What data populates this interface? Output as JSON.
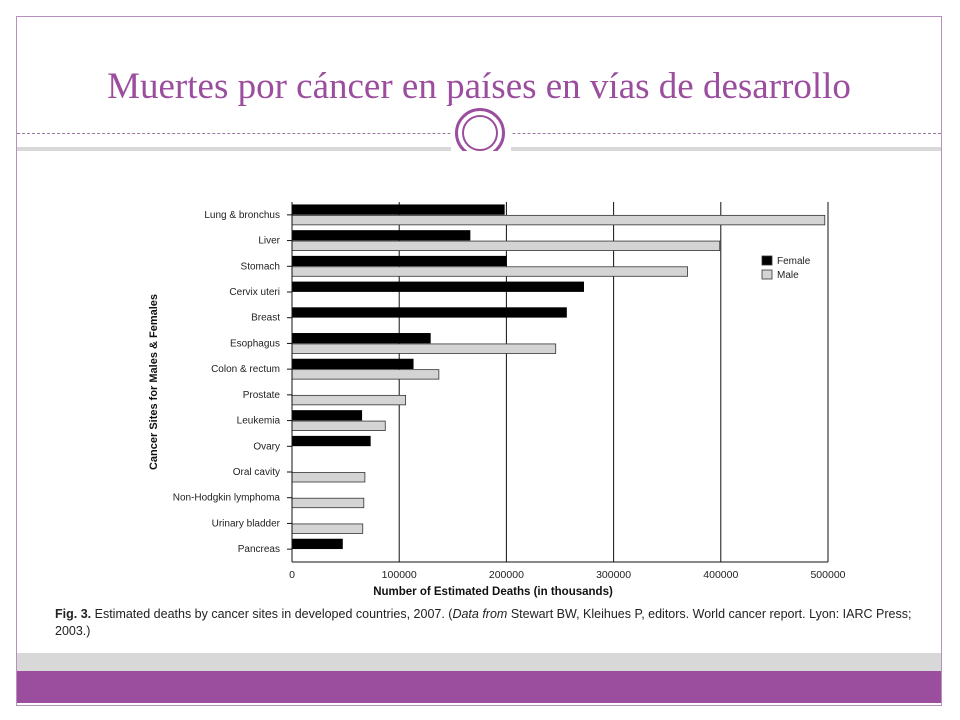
{
  "slide": {
    "title": "Muertes por cáncer en países en vías de desarrollo",
    "caption_label": "Fig. 3.",
    "caption_part1": "Estimated deaths by cancer sites in developed countries, 2007. (",
    "caption_italic": "Data from",
    "caption_part2": " Stewart BW, Kleihues P, editors. World cancer report. Lyon: IARC Press;",
    "caption_line2": "2003.)"
  },
  "colors": {
    "accent": "#9b4d9e",
    "female": "#000000",
    "male": "#d4d4d4"
  },
  "chart_data": {
    "type": "bar",
    "orientation": "horizontal",
    "title": "",
    "xlabel": "Number of Estimated Deaths (in thousands)",
    "ylabel": "Cancer Sites for Males & Females",
    "xlim": [
      0,
      500000
    ],
    "xticks": [
      0,
      100000,
      200000,
      300000,
      400000,
      500000
    ],
    "xtick_labels": [
      "0",
      "100000",
      "200000",
      "300000",
      "400000",
      "500000"
    ],
    "grid": "vertical",
    "legend_position": "right",
    "categories": [
      "Lung & bronchus",
      "Liver",
      "Stomach",
      "Cervix uteri",
      "Breast",
      "Esophagus",
      "Colon & rectum",
      "Prostate",
      "Leukemia",
      "Ovary",
      "Oral cavity",
      "Non-Hodgkin lymphoma",
      "Urinary bladder",
      "Pancreas"
    ],
    "series": [
      {
        "name": "Female",
        "values": [
          198000,
          166000,
          200000,
          272000,
          256000,
          129000,
          113000,
          null,
          65000,
          73000,
          null,
          null,
          null,
          47000
        ]
      },
      {
        "name": "Male",
        "values": [
          497000,
          399000,
          369000,
          null,
          null,
          246000,
          137000,
          106000,
          87000,
          null,
          68000,
          67000,
          66000,
          null
        ]
      }
    ]
  }
}
